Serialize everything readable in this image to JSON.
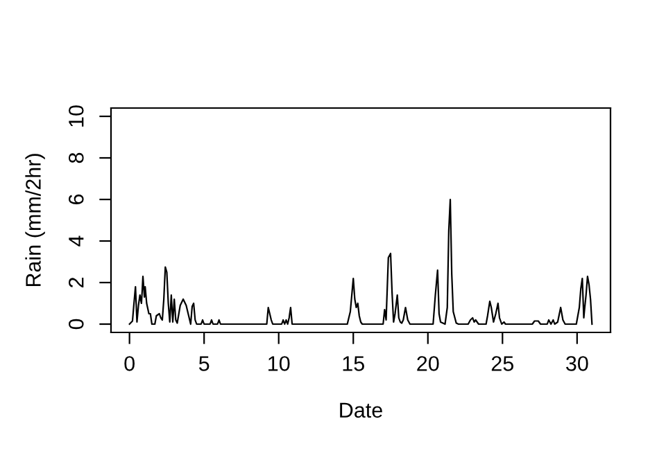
{
  "chart_data": {
    "type": "line",
    "xlabel": "Date",
    "ylabel": "Rain (mm/2hr)",
    "x": [
      0,
      0.2,
      0.3,
      0.4,
      0.5,
      0.6,
      0.7,
      0.8,
      0.85,
      0.9,
      1.0,
      1.05,
      1.15,
      1.3,
      1.4,
      1.5,
      1.7,
      1.8,
      2.0,
      2.1,
      2.2,
      2.3,
      2.4,
      2.5,
      2.6,
      2.7,
      2.8,
      2.9,
      3.0,
      3.1,
      3.2,
      3.4,
      3.6,
      3.8,
      4.0,
      4.1,
      4.2,
      4.3,
      4.4,
      4.5,
      4.8,
      4.9,
      5.0,
      5.4,
      5.5,
      5.6,
      5.9,
      6.0,
      6.1,
      9.2,
      9.3,
      9.5,
      9.6,
      10.2,
      10.3,
      10.4,
      10.5,
      10.6,
      10.7,
      10.8,
      10.9,
      14.6,
      14.8,
      14.9,
      15.0,
      15.1,
      15.2,
      15.3,
      15.4,
      15.5,
      15.6,
      17.0,
      17.1,
      17.2,
      17.35,
      17.5,
      17.6,
      17.7,
      17.8,
      17.95,
      18.05,
      18.15,
      18.25,
      18.35,
      18.5,
      18.65,
      18.8,
      20.35,
      20.5,
      20.65,
      20.75,
      20.85,
      21.15,
      21.3,
      21.4,
      21.5,
      21.6,
      21.7,
      21.9,
      22.05,
      22.7,
      22.85,
      23.0,
      23.1,
      23.2,
      23.4,
      23.9,
      24.0,
      24.15,
      24.25,
      24.4,
      24.55,
      24.7,
      24.8,
      24.95,
      25.1,
      25.2,
      27.0,
      27.15,
      27.4,
      27.55,
      28.0,
      28.1,
      28.25,
      28.4,
      28.5,
      28.7,
      28.9,
      29.05,
      29.2,
      29.95,
      30.15,
      30.25,
      30.35,
      30.45,
      30.5,
      30.6,
      30.7,
      30.8,
      30.9,
      31.0
    ],
    "series": [
      {
        "color": "#000000",
        "values": [
          0,
          0.15,
          1.0,
          1.8,
          0.1,
          0.9,
          1.4,
          1.0,
          1.6,
          2.3,
          1.3,
          1.8,
          1.0,
          0.5,
          0.5,
          0,
          0,
          0.4,
          0.5,
          0.3,
          0.2,
          1.2,
          2.75,
          2.5,
          1.0,
          0.1,
          1.4,
          0.1,
          1.2,
          0.2,
          0.05,
          0.9,
          1.2,
          0.9,
          0.3,
          0,
          0.85,
          1.0,
          0.2,
          0,
          0,
          0.2,
          0,
          0,
          0.2,
          0,
          0,
          0.2,
          0,
          0,
          0.8,
          0.2,
          0,
          0,
          0.2,
          0,
          0.2,
          0,
          0.3,
          0.8,
          0,
          0,
          0.6,
          1.4,
          2.2,
          1.2,
          0.8,
          1.0,
          0.4,
          0.1,
          0,
          0,
          0.7,
          0.2,
          3.2,
          3.4,
          1.5,
          0.1,
          0.5,
          1.4,
          0.3,
          0.1,
          0.05,
          0.2,
          0.8,
          0.2,
          0,
          0,
          1.4,
          2.6,
          0.5,
          0.1,
          0,
          0.8,
          4.5,
          6.0,
          2.4,
          0.6,
          0.05,
          0,
          0,
          0.2,
          0.3,
          0.1,
          0.2,
          0,
          0,
          0.4,
          1.1,
          0.8,
          0.1,
          0.5,
          1.0,
          0.3,
          0,
          0.1,
          0,
          0,
          0.15,
          0.15,
          0,
          0,
          0.2,
          0,
          0.2,
          0,
          0.1,
          0.8,
          0.2,
          0,
          0,
          0.8,
          1.7,
          2.2,
          0.3,
          0.7,
          1.4,
          2.3,
          1.9,
          1.2,
          0
        ]
      }
    ],
    "xlim": [
      -1.24,
      32.24
    ],
    "ylim": [
      -0.4,
      10.4
    ],
    "xticks": [
      0,
      5,
      10,
      15,
      20,
      25,
      30
    ],
    "yticks": [
      0,
      2,
      4,
      6,
      8,
      10
    ],
    "grid": false,
    "legend": false,
    "marker": "none",
    "line_style": "solid"
  }
}
